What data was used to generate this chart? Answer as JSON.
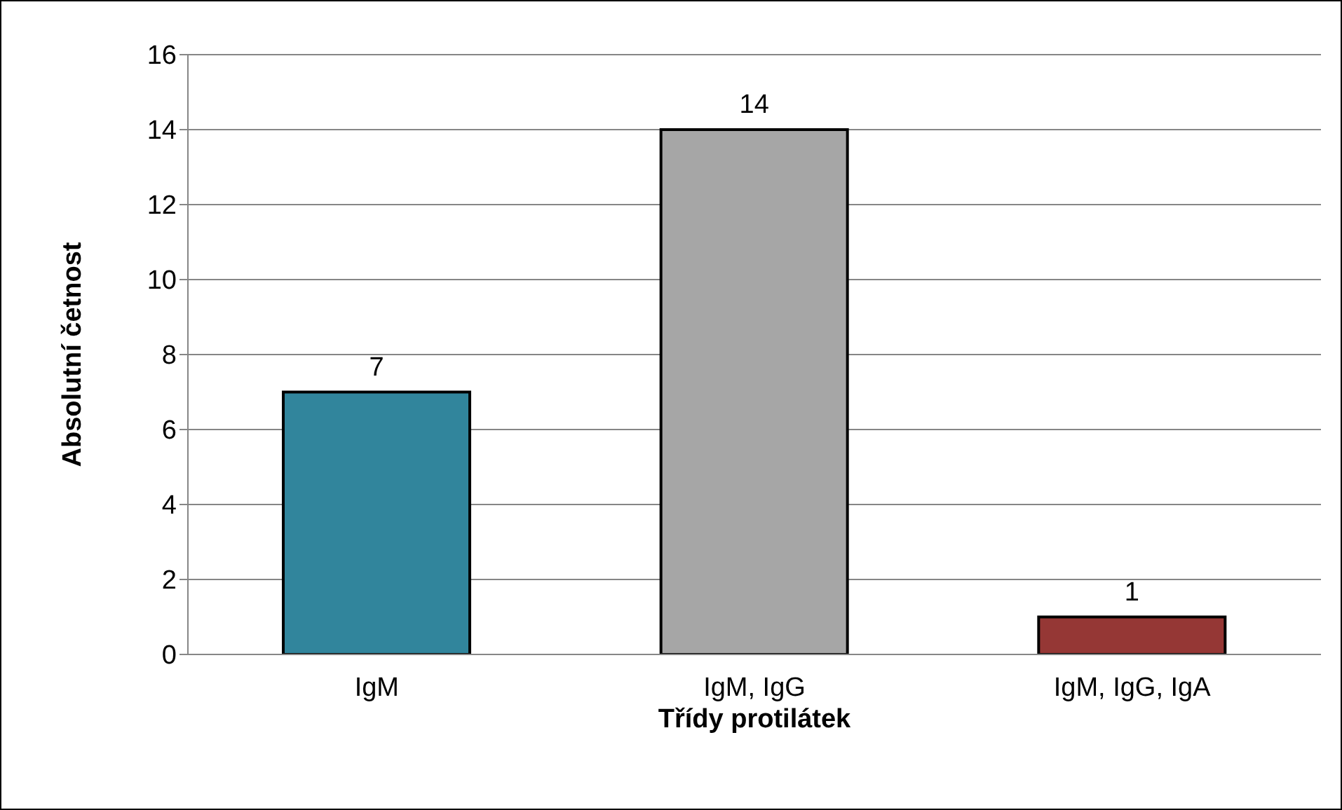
{
  "chart_data": {
    "type": "bar",
    "xlabel": "Třídy protilátek",
    "ylabel": "Absolutní četnost",
    "categories": [
      "IgM",
      "IgM, IgG",
      "IgM, IgG, IgA"
    ],
    "values": [
      7,
      14,
      1
    ],
    "colors": [
      "#31859c",
      "#a6a6a6",
      "#953735"
    ],
    "ylim": [
      0,
      16
    ],
    "yticks": [
      0,
      2,
      4,
      6,
      8,
      10,
      12,
      14,
      16
    ],
    "grid": "y",
    "data_labels": true,
    "legend": false
  }
}
